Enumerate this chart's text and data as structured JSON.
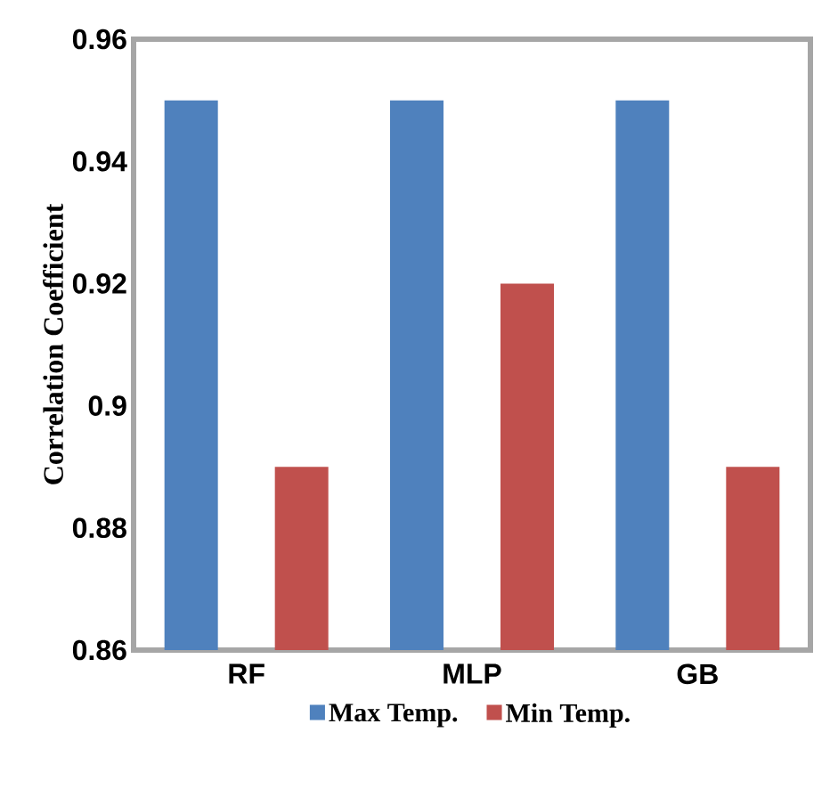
{
  "chart_data": {
    "type": "bar",
    "ylabel": "Correlation Coefficient",
    "categories": [
      "RF",
      "MLP",
      "GB"
    ],
    "series": [
      {
        "name": "Max Temp.",
        "color": "#4f81bd",
        "values": [
          0.95,
          0.95,
          0.95
        ]
      },
      {
        "name": "Min Temp.",
        "color": "#c0504d",
        "values": [
          0.89,
          0.92,
          0.89
        ]
      }
    ],
    "ylim": [
      0.86,
      0.96
    ],
    "yticks": [
      0.86,
      0.88,
      0.9,
      0.92,
      0.94,
      0.96
    ],
    "grid": false,
    "legend": "bottom"
  }
}
